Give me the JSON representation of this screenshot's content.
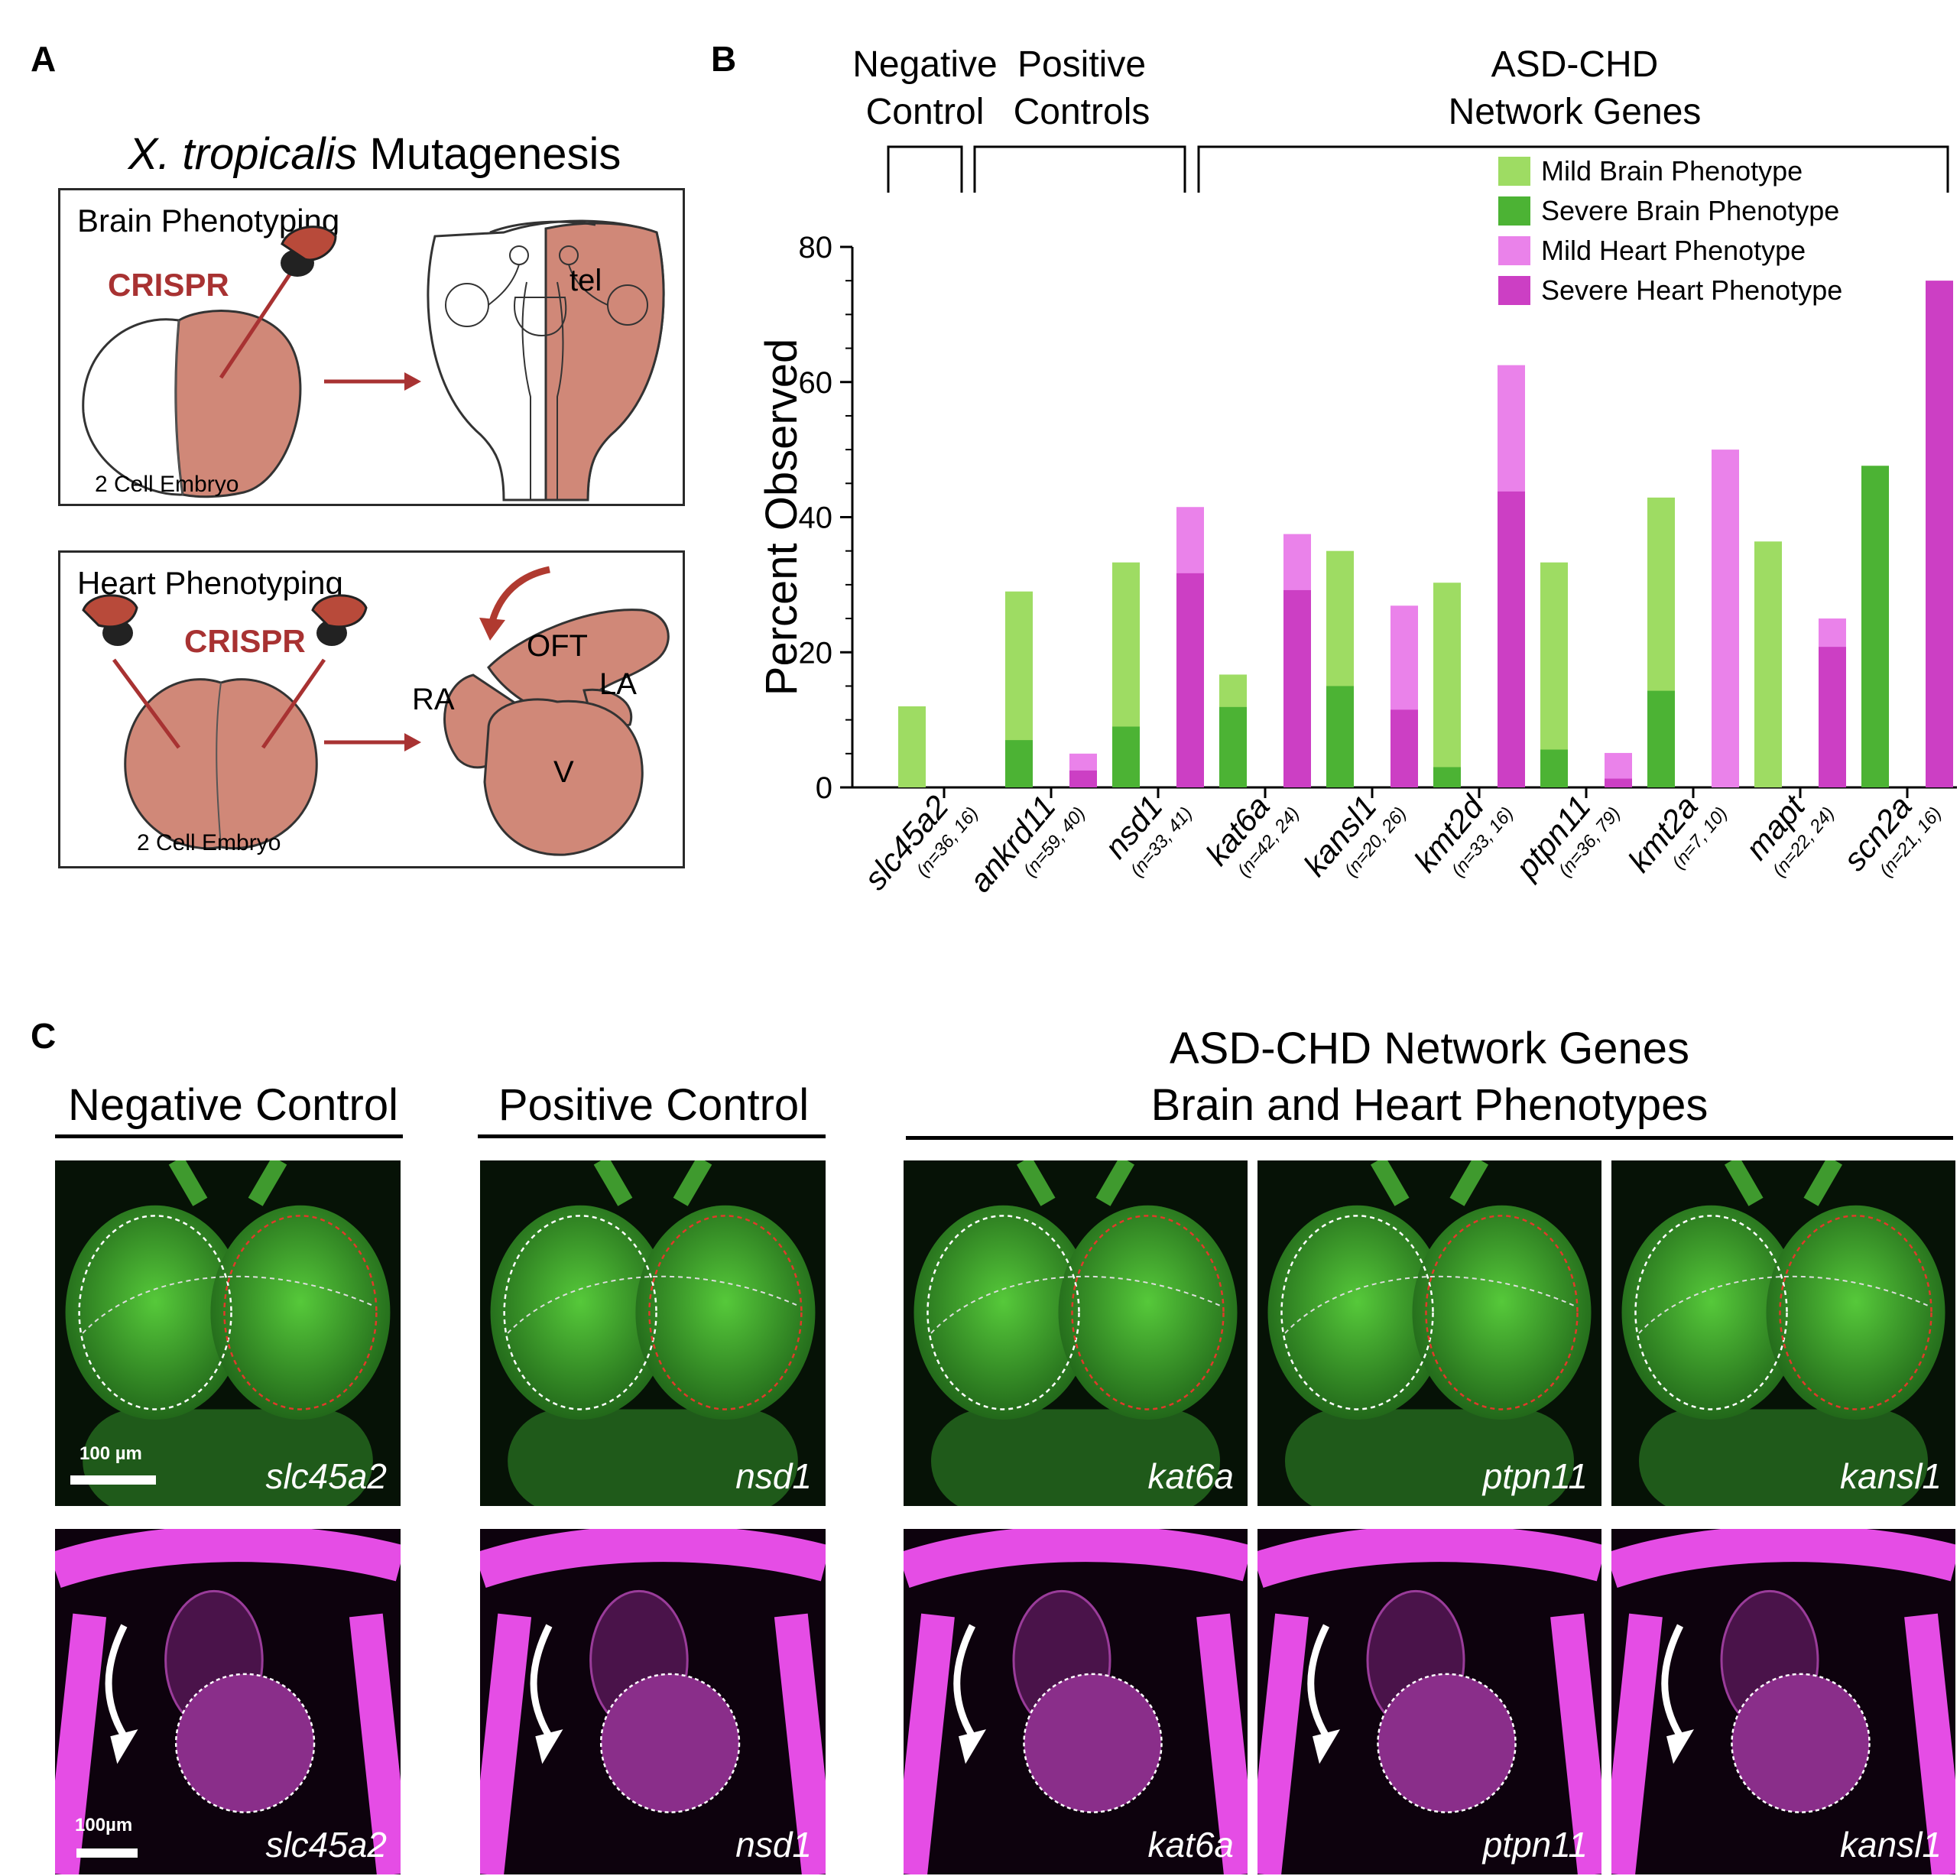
{
  "panel_a": {
    "letter": "A",
    "title_italic": "X. tropicalis",
    "title_rest": " Mutagenesis",
    "brain_box": {
      "label": "Brain Phenotyping",
      "crispr": "CRISPR",
      "embryo": "2 Cell Embryo",
      "region": "tel"
    },
    "heart_box": {
      "label": "Heart Phenotyping",
      "crispr": "CRISPR",
      "embryo": "2 Cell Embryo",
      "regions": {
        "oft": "OFT",
        "ra": "RA",
        "la": "LA",
        "v": "V"
      }
    }
  },
  "panel_b": {
    "letter": "B",
    "groups": [
      {
        "line1": "Negative",
        "line2": "Control"
      },
      {
        "line1": "Positive",
        "line2": "Controls"
      },
      {
        "line1": "ASD-CHD",
        "line2": "Network Genes"
      }
    ]
  },
  "chart_data": {
    "type": "bar",
    "title": "",
    "ylabel": "Percent Observed",
    "xlabel": "",
    "ylim": [
      0,
      80
    ],
    "yticks": [
      0,
      20,
      40,
      60,
      80
    ],
    "legend_position": "top-right",
    "genes": [
      {
        "name": "slc45a2",
        "n": "(n=36, 16)",
        "mild_brain": 12,
        "severe_brain": 0,
        "mild_heart": 0,
        "severe_heart": 0
      },
      {
        "name": "ankrd11",
        "n": "(n=59, 40)",
        "mild_brain": 29,
        "severe_brain": 7,
        "mild_heart": 5,
        "severe_heart": 2.5
      },
      {
        "name": "nsd1",
        "n": "(n=33, 41)",
        "mild_brain": 33.3,
        "severe_brain": 9,
        "mild_heart": 41.5,
        "severe_heart": 31.7
      },
      {
        "name": "kat6a",
        "n": "(n=42, 24)",
        "mild_brain": 16.7,
        "severe_brain": 11.9,
        "mild_heart": 37.5,
        "severe_heart": 29.2
      },
      {
        "name": "kansl1",
        "n": "(n=20, 26)",
        "mild_brain": 35,
        "severe_brain": 15,
        "mild_heart": 26.9,
        "severe_heart": 11.5
      },
      {
        "name": "kmt2d",
        "n": "(n=33, 16)",
        "mild_brain": 30.3,
        "severe_brain": 3,
        "mild_heart": 62.5,
        "severe_heart": 43.8
      },
      {
        "name": "ptpn11",
        "n": "(n=36, 79)",
        "mild_brain": 33.3,
        "severe_brain": 5.6,
        "mild_heart": 5.1,
        "severe_heart": 1.3
      },
      {
        "name": "kmt2a",
        "n": "(n=7, 10)",
        "mild_brain": 42.9,
        "severe_brain": 14.3,
        "mild_heart": 50,
        "severe_heart": 0
      },
      {
        "name": "mapt",
        "n": "(n=22, 24)",
        "mild_brain": 36.4,
        "severe_brain": 0,
        "mild_heart": 25,
        "severe_heart": 20.8
      },
      {
        "name": "scn2a",
        "n": "(n=21, 16)",
        "mild_brain": 47.6,
        "severe_brain": 47.6,
        "mild_heart": 75,
        "severe_heart": 75
      }
    ],
    "series": [
      {
        "name": "Mild Brain Phenotype",
        "color": "#9edc63"
      },
      {
        "name": "Severe Brain Phenotype",
        "color": "#4cb334"
      },
      {
        "name": "Mild Heart Phenotype",
        "color": "#ea82ea"
      },
      {
        "name": "Severe Heart Phenotype",
        "color": "#cc3fc4"
      }
    ]
  },
  "panel_c": {
    "letter": "C",
    "negative_title": "Negative Control",
    "positive_title": "Positive Control",
    "network_title_line1": "ASD-CHD Network Genes",
    "network_title_line2": "Brain and Heart Phenotypes",
    "brain_scale": "100 µm",
    "heart_scale": "100µm",
    "brain_labels": [
      "slc45a2",
      "nsd1",
      "kat6a",
      "ptpn11",
      "kansl1"
    ],
    "heart_labels": [
      "slc45a2",
      "nsd1",
      "kat6a",
      "ptpn11",
      "kansl1"
    ]
  }
}
